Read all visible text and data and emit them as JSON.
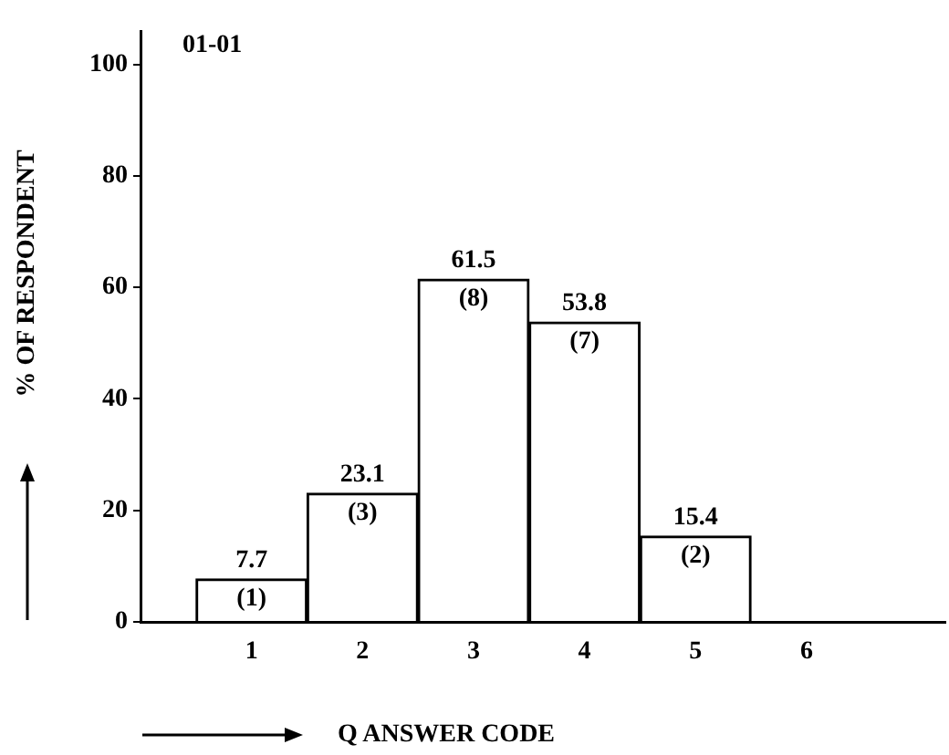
{
  "chart_data": {
    "type": "bar",
    "xlabel": "Q ANSWER CODE",
    "ylabel": "% OF RESPONDENT",
    "categories": [
      "1",
      "2",
      "3",
      "4",
      "5",
      "6"
    ],
    "values": [
      7.7,
      23.1,
      61.5,
      53.8,
      15.4,
      null
    ],
    "color": "#ffffff",
    "ylim": [
      0,
      106
    ],
    "yticks": [
      0,
      20,
      40,
      60,
      80,
      100
    ],
    "data_labels": true,
    "annotations": [
      "01-01",
      {
        "text": "(1)",
        "x": "1",
        "y": 7.7
      },
      {
        "text": "(3)",
        "x": "2",
        "y": 23.1
      },
      {
        "text": "(8)",
        "x": "3",
        "y": 61.5
      },
      {
        "text": "(7)",
        "x": "4",
        "y": 53.8
      },
      {
        "text": "(2)",
        "x": "5",
        "y": 15.4
      }
    ]
  }
}
